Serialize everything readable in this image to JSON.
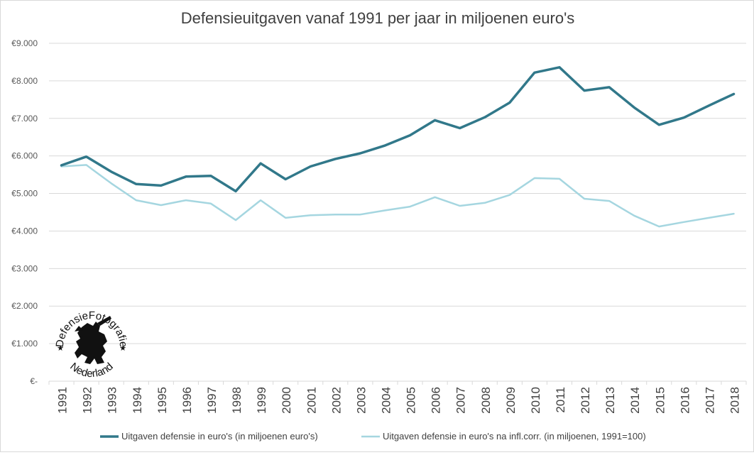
{
  "chart_data": {
    "type": "line",
    "title": "Defensieuitgaven vanaf 1991 per jaar in miljoenen euro's",
    "xlabel": "",
    "ylabel": "",
    "ylim": [
      0,
      9000
    ],
    "y_ticks": [
      0,
      1000,
      2000,
      3000,
      4000,
      5000,
      6000,
      7000,
      8000,
      9000
    ],
    "y_tick_labels": [
      "€-",
      "€1.000",
      "€2.000",
      "€3.000",
      "€4.000",
      "€5.000",
      "€6.000",
      "€7.000",
      "€8.000",
      "€9.000"
    ],
    "categories": [
      "1991",
      "1992",
      "1993",
      "1994",
      "1995",
      "1996",
      "1997",
      "1998",
      "1999",
      "2000",
      "2001",
      "2002",
      "2003",
      "2004",
      "2005",
      "2006",
      "2007",
      "2008",
      "2009",
      "2010",
      "2011",
      "2012",
      "2013",
      "2014",
      "2015",
      "2016",
      "2017",
      "2018"
    ],
    "grid": true,
    "legend_position": "bottom",
    "series": [
      {
        "name": "Uitgaven defensie in euro's (in miljoenen euro's)",
        "color": "#31788a",
        "values": [
          5750,
          5980,
          5580,
          5250,
          5210,
          5450,
          5470,
          5060,
          5800,
          5380,
          5720,
          5920,
          6070,
          6280,
          6550,
          6950,
          6740,
          7030,
          7420,
          8220,
          8360,
          7740,
          7830,
          7290,
          6830,
          7020,
          7340,
          7650
        ]
      },
      {
        "name": "Uitgaven defensie in euro's na infl.corr. (in miljoenen, 1991=100)",
        "color": "#a5d6e0",
        "values": [
          5720,
          5760,
          5270,
          4820,
          4690,
          4820,
          4730,
          4290,
          4820,
          4350,
          4420,
          4440,
          4440,
          4550,
          4650,
          4900,
          4670,
          4750,
          4960,
          5410,
          5390,
          4860,
          4800,
          4410,
          4120,
          4240,
          4350,
          4460
        ]
      }
    ]
  },
  "watermark": {
    "top_text": "DefensieFotografie",
    "bottom_text": "Nederland",
    "icon": "lion-icon"
  }
}
